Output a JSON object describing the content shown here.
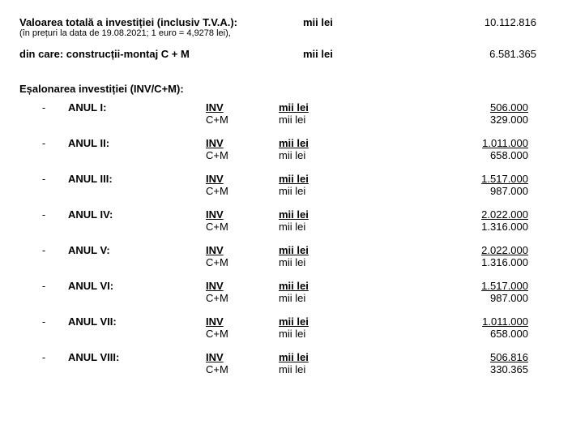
{
  "header": {
    "line1": "Valoarea totală a investiției (inclusiv T.V.A.):",
    "line1_note": "(în prețuri la data de 19.08.2021; 1 euro = 4,9278 lei),",
    "line1_unit": "mii lei",
    "line1_value": "10.112.816",
    "line2": "din care: construcții-montaj C + M",
    "line2_unit": "mii lei",
    "line2_value": "6.581.365"
  },
  "schedule_title": "Eșalonarea investiției (INV/C+M):",
  "bullet": "-",
  "labels": {
    "inv": "INV",
    "cm": "C+M",
    "unit": "mii lei"
  },
  "years": [
    {
      "name": "ANUL I:",
      "inv": "506.000",
      "cm": "329.000"
    },
    {
      "name": "ANUL II:",
      "inv": "1.011.000",
      "cm": "658.000"
    },
    {
      "name": "ANUL III:",
      "inv": "1.517.000",
      "cm": "987.000"
    },
    {
      "name": "ANUL IV:",
      "inv": "2.022.000",
      "cm": "1.316.000"
    },
    {
      "name": "ANUL V:",
      "inv": "2.022.000",
      "cm": "1.316.000"
    },
    {
      "name": "ANUL VI:",
      "inv": "1.517.000",
      "cm": "987.000"
    },
    {
      "name": "ANUL VII:",
      "inv": "1.011.000",
      "cm": "658.000"
    },
    {
      "name": "ANUL VIII:",
      "inv": "506.816",
      "cm": "330.365"
    }
  ]
}
